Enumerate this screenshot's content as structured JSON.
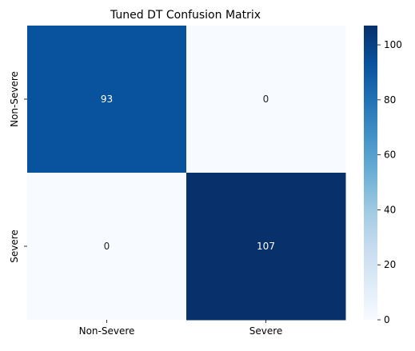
{
  "chart_data": {
    "type": "heatmap",
    "title": "Tuned DT Confusion Matrix",
    "xlabel": "",
    "ylabel": "",
    "x_categories": [
      "Non-Severe",
      "Severe"
    ],
    "y_categories": [
      "Non-Severe",
      "Severe"
    ],
    "values": [
      [
        93,
        0
      ],
      [
        0,
        107
      ]
    ],
    "colormap": "Blues",
    "colorbar": {
      "range": [
        0,
        107
      ],
      "ticks": [
        0,
        20,
        40,
        60,
        80,
        100
      ],
      "tick_labels": [
        "0",
        "20",
        "40",
        "60",
        "80",
        "100"
      ]
    },
    "annotation_color_light": "#ffffff",
    "annotation_color_dark": "#262626"
  }
}
